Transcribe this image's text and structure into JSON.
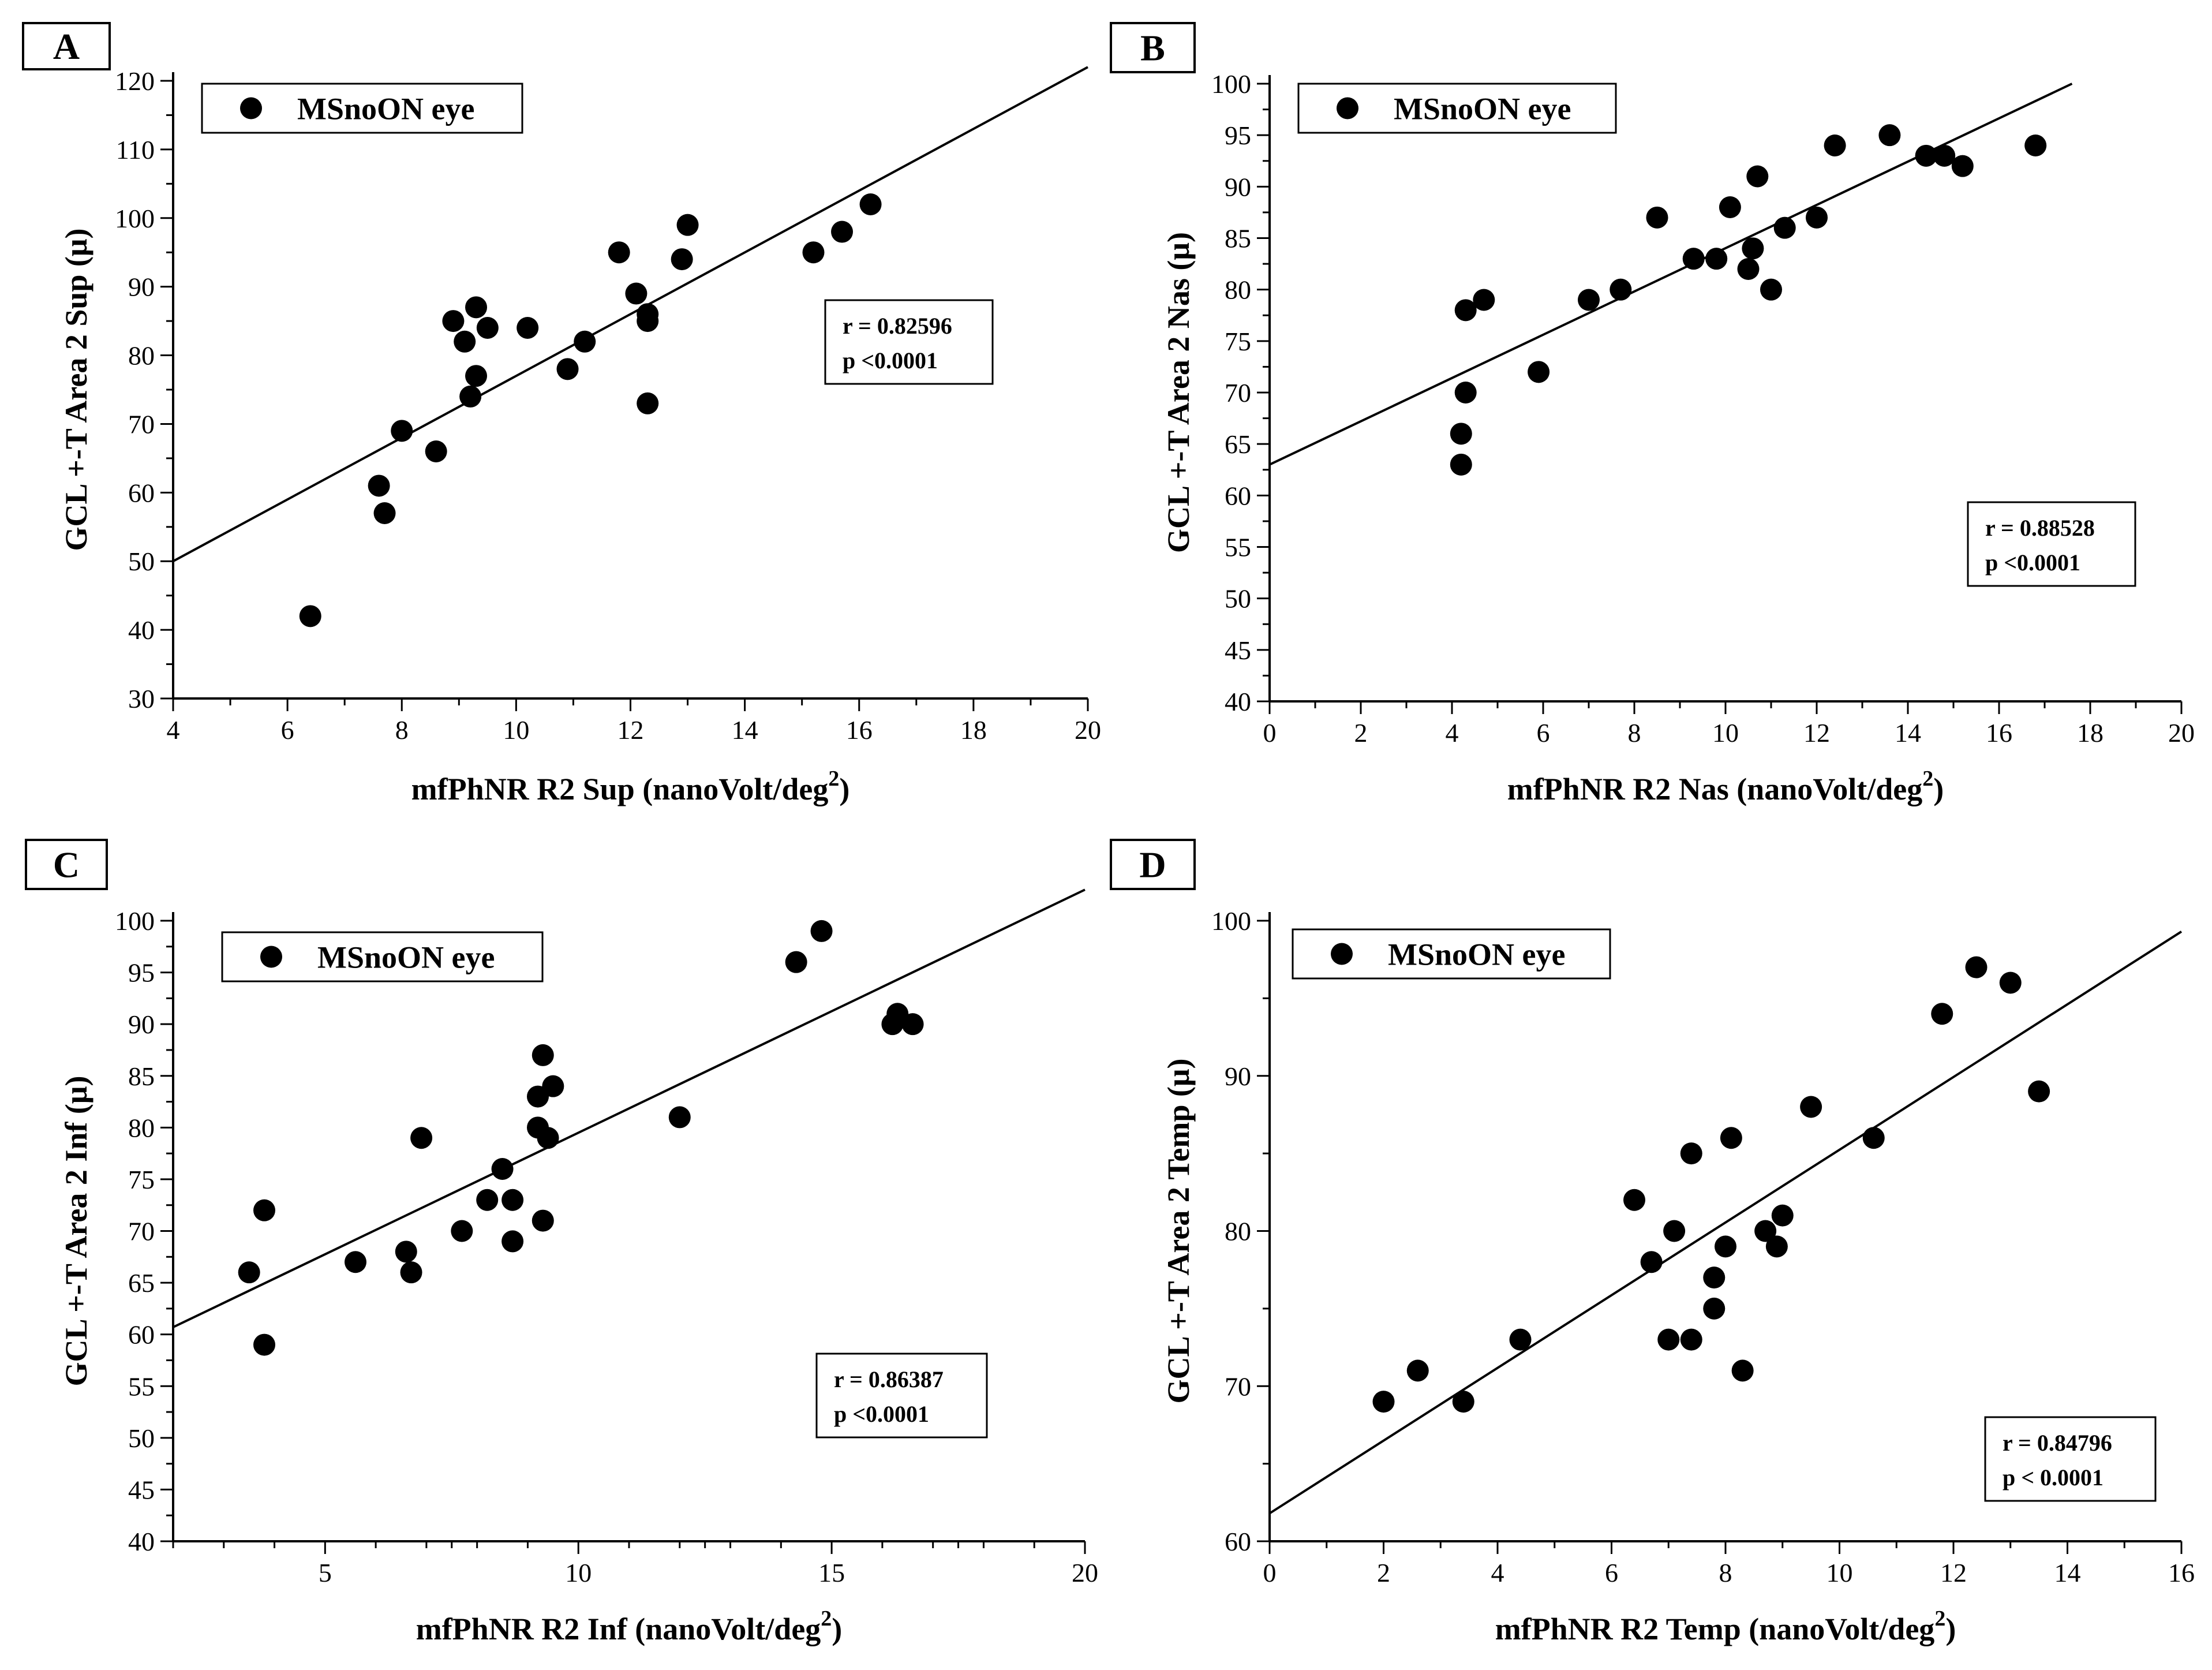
{
  "figure": {
    "colors": {
      "ink": "#000000",
      "background": "#ffffff"
    }
  },
  "chart_data": [
    {
      "type": "scatter",
      "panel": "A",
      "legend": "MSnoON eye",
      "xlabel": "mfPhNR R2 Sup (nanoVolt/deg",
      "xlabel_sup": "2",
      "xlabel_tail": ")",
      "ylabel": "GCL +-T Area 2 Sup (μ)",
      "xlim": [
        4,
        20
      ],
      "ylim": [
        30,
        120
      ],
      "xticks": [
        "4",
        "6",
        "8",
        "10",
        "12",
        "14",
        "16",
        "18",
        "20"
      ],
      "yticks": [
        "30",
        "40",
        "50",
        "60",
        "70",
        "80",
        "90",
        "100",
        "110",
        "120"
      ],
      "x": [
        6.4,
        7.6,
        7.7,
        8.0,
        8.6,
        8.9,
        9.1,
        9.2,
        9.3,
        9.3,
        9.5,
        10.2,
        10.9,
        11.2,
        11.8,
        12.1,
        12.3,
        12.3,
        12.3,
        12.9,
        13.0,
        15.2,
        15.7,
        16.2
      ],
      "y": [
        42,
        61,
        57,
        69,
        66,
        85,
        82,
        74,
        87,
        77,
        84,
        84,
        78,
        82,
        95,
        89,
        73,
        85,
        86,
        94,
        99,
        95,
        98,
        102
      ],
      "fit": {
        "x": [
          4,
          20
        ],
        "y": [
          50,
          122
        ]
      },
      "stat_r": "r  = 0.82596",
      "stat_p": "p <0.0001"
    },
    {
      "type": "scatter",
      "panel": "B",
      "legend": "MSnoON eye",
      "xlabel": "mfPhNR R2 Nas (nanoVolt/deg",
      "xlabel_sup": "2",
      "xlabel_tail": ")",
      "ylabel": "GCL +-T Area 2 Nas (μ)",
      "xlim": [
        0,
        20
      ],
      "ylim": [
        40,
        100
      ],
      "xticks": [
        "0",
        "2",
        "4",
        "6",
        "8",
        "10",
        "12",
        "14",
        "16",
        "18",
        "20"
      ],
      "yticks": [
        "40",
        "45",
        "50",
        "55",
        "60",
        "65",
        "70",
        "75",
        "80",
        "85",
        "90",
        "95",
        "100"
      ],
      "x": [
        4.2,
        4.2,
        4.3,
        4.3,
        4.7,
        5.9,
        7.0,
        7.7,
        8.5,
        9.3,
        9.8,
        10.1,
        10.5,
        10.6,
        10.7,
        11.0,
        11.3,
        12.0,
        12.4,
        13.6,
        14.4,
        14.8,
        15.2,
        16.8
      ],
      "y": [
        63,
        66,
        70,
        78,
        79,
        72,
        79,
        80,
        87,
        83,
        83,
        88,
        82,
        84,
        91,
        80,
        86,
        87,
        94,
        95,
        93,
        93,
        92,
        94
      ],
      "fit": {
        "x": [
          0,
          17.6
        ],
        "y": [
          63,
          100
        ]
      },
      "stat_r": "r  = 0.88528",
      "stat_p": "p <0.0001"
    },
    {
      "type": "scatter",
      "panel": "C",
      "legend": "MSnoON eye",
      "xlabel": "mfPhNR R2 Inf (nanoVolt/deg",
      "xlabel_sup": "2",
      "xlabel_tail": ")",
      "ylabel": "GCL +-T Area 2 Inf  (μ)",
      "xlim": [
        2,
        20
      ],
      "ylim": [
        40,
        100
      ],
      "xticks": [
        "5",
        "10",
        "15",
        "20"
      ],
      "xtick_values": [
        5,
        10,
        15,
        20
      ],
      "yticks": [
        "40",
        "45",
        "50",
        "55",
        "60",
        "65",
        "70",
        "75",
        "80",
        "85",
        "90",
        "95",
        "100"
      ],
      "x": [
        3.5,
        3.8,
        3.8,
        5.6,
        6.6,
        6.7,
        6.9,
        7.7,
        8.2,
        8.5,
        8.7,
        8.7,
        9.2,
        9.2,
        9.3,
        9.3,
        9.4,
        9.5,
        12.0,
        14.3,
        14.8,
        16.2,
        16.3,
        16.6
      ],
      "y": [
        66,
        72,
        59,
        67,
        68,
        66,
        79,
        70,
        73,
        76,
        73,
        69,
        83,
        80,
        87,
        71,
        79,
        84,
        81,
        96,
        99,
        90,
        91,
        90
      ],
      "fit": {
        "x": [
          2,
          20
        ],
        "y": [
          60.7,
          103
        ]
      },
      "stat_r": "r  = 0.86387",
      "stat_p": "p <0.0001"
    },
    {
      "type": "scatter",
      "panel": "D",
      "legend": "MSnoON eye",
      "xlabel": "mfPhNR R2 Temp (nanoVolt/deg",
      "xlabel_sup": "2",
      "xlabel_tail": ")",
      "ylabel": "GCL +-T Area 2 Temp  (μ)",
      "xlim": [
        0,
        16
      ],
      "ylim": [
        60,
        100
      ],
      "xticks": [
        "0",
        "2",
        "4",
        "6",
        "8",
        "10",
        "12",
        "14",
        "16"
      ],
      "yticks": [
        "60",
        "70",
        "80",
        "90",
        "100"
      ],
      "x": [
        2.0,
        2.6,
        3.4,
        4.4,
        6.4,
        6.7,
        7.0,
        7.1,
        7.4,
        7.4,
        7.8,
        7.8,
        8.0,
        8.1,
        8.3,
        8.7,
        8.9,
        9.0,
        9.5,
        10.6,
        11.8,
        12.4,
        13.0,
        13.5
      ],
      "y": [
        69,
        71,
        69,
        73,
        82,
        78,
        73,
        80,
        85,
        73,
        75,
        77,
        79,
        86,
        71,
        80,
        79,
        81,
        88,
        86,
        94,
        97,
        96,
        89
      ],
      "fit": {
        "x": [
          0,
          16
        ],
        "y": [
          61.8,
          99.3
        ]
      },
      "stat_r": "r  = 0.84796",
      "stat_p": "p < 0.0001"
    }
  ]
}
